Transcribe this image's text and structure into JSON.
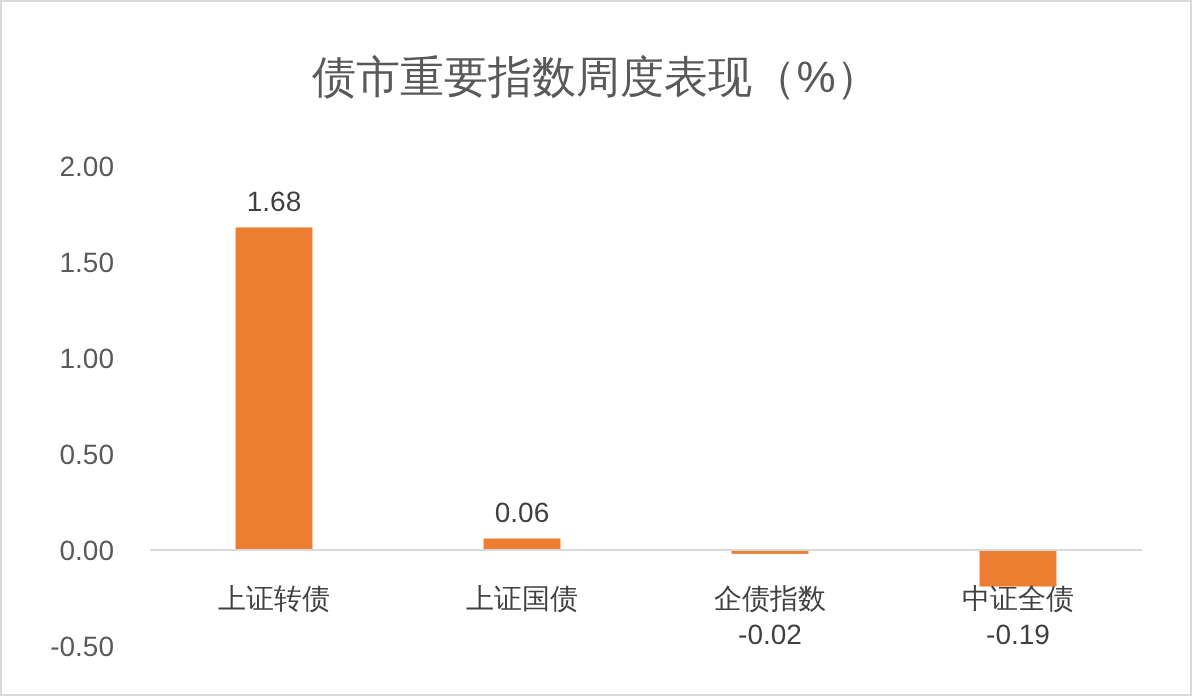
{
  "chart_data": {
    "type": "bar",
    "title": "债市重要指数周度表现（%）",
    "categories": [
      "上证转债",
      "上证国债",
      "企债指数",
      "中证全债"
    ],
    "values": [
      1.68,
      0.06,
      -0.02,
      -0.19
    ],
    "color": "#ed7d31",
    "ylim": [
      -0.5,
      2
    ],
    "yticks": [
      {
        "value": -0.5,
        "label": "-0.50"
      },
      {
        "value": 0,
        "label": "0.00"
      },
      {
        "value": 0.5,
        "label": "0.50"
      },
      {
        "value": 1,
        "label": "1.00"
      },
      {
        "value": 1.5,
        "label": "1.50"
      },
      {
        "value": 2,
        "label": "2.00"
      }
    ],
    "data_labels": true
  }
}
